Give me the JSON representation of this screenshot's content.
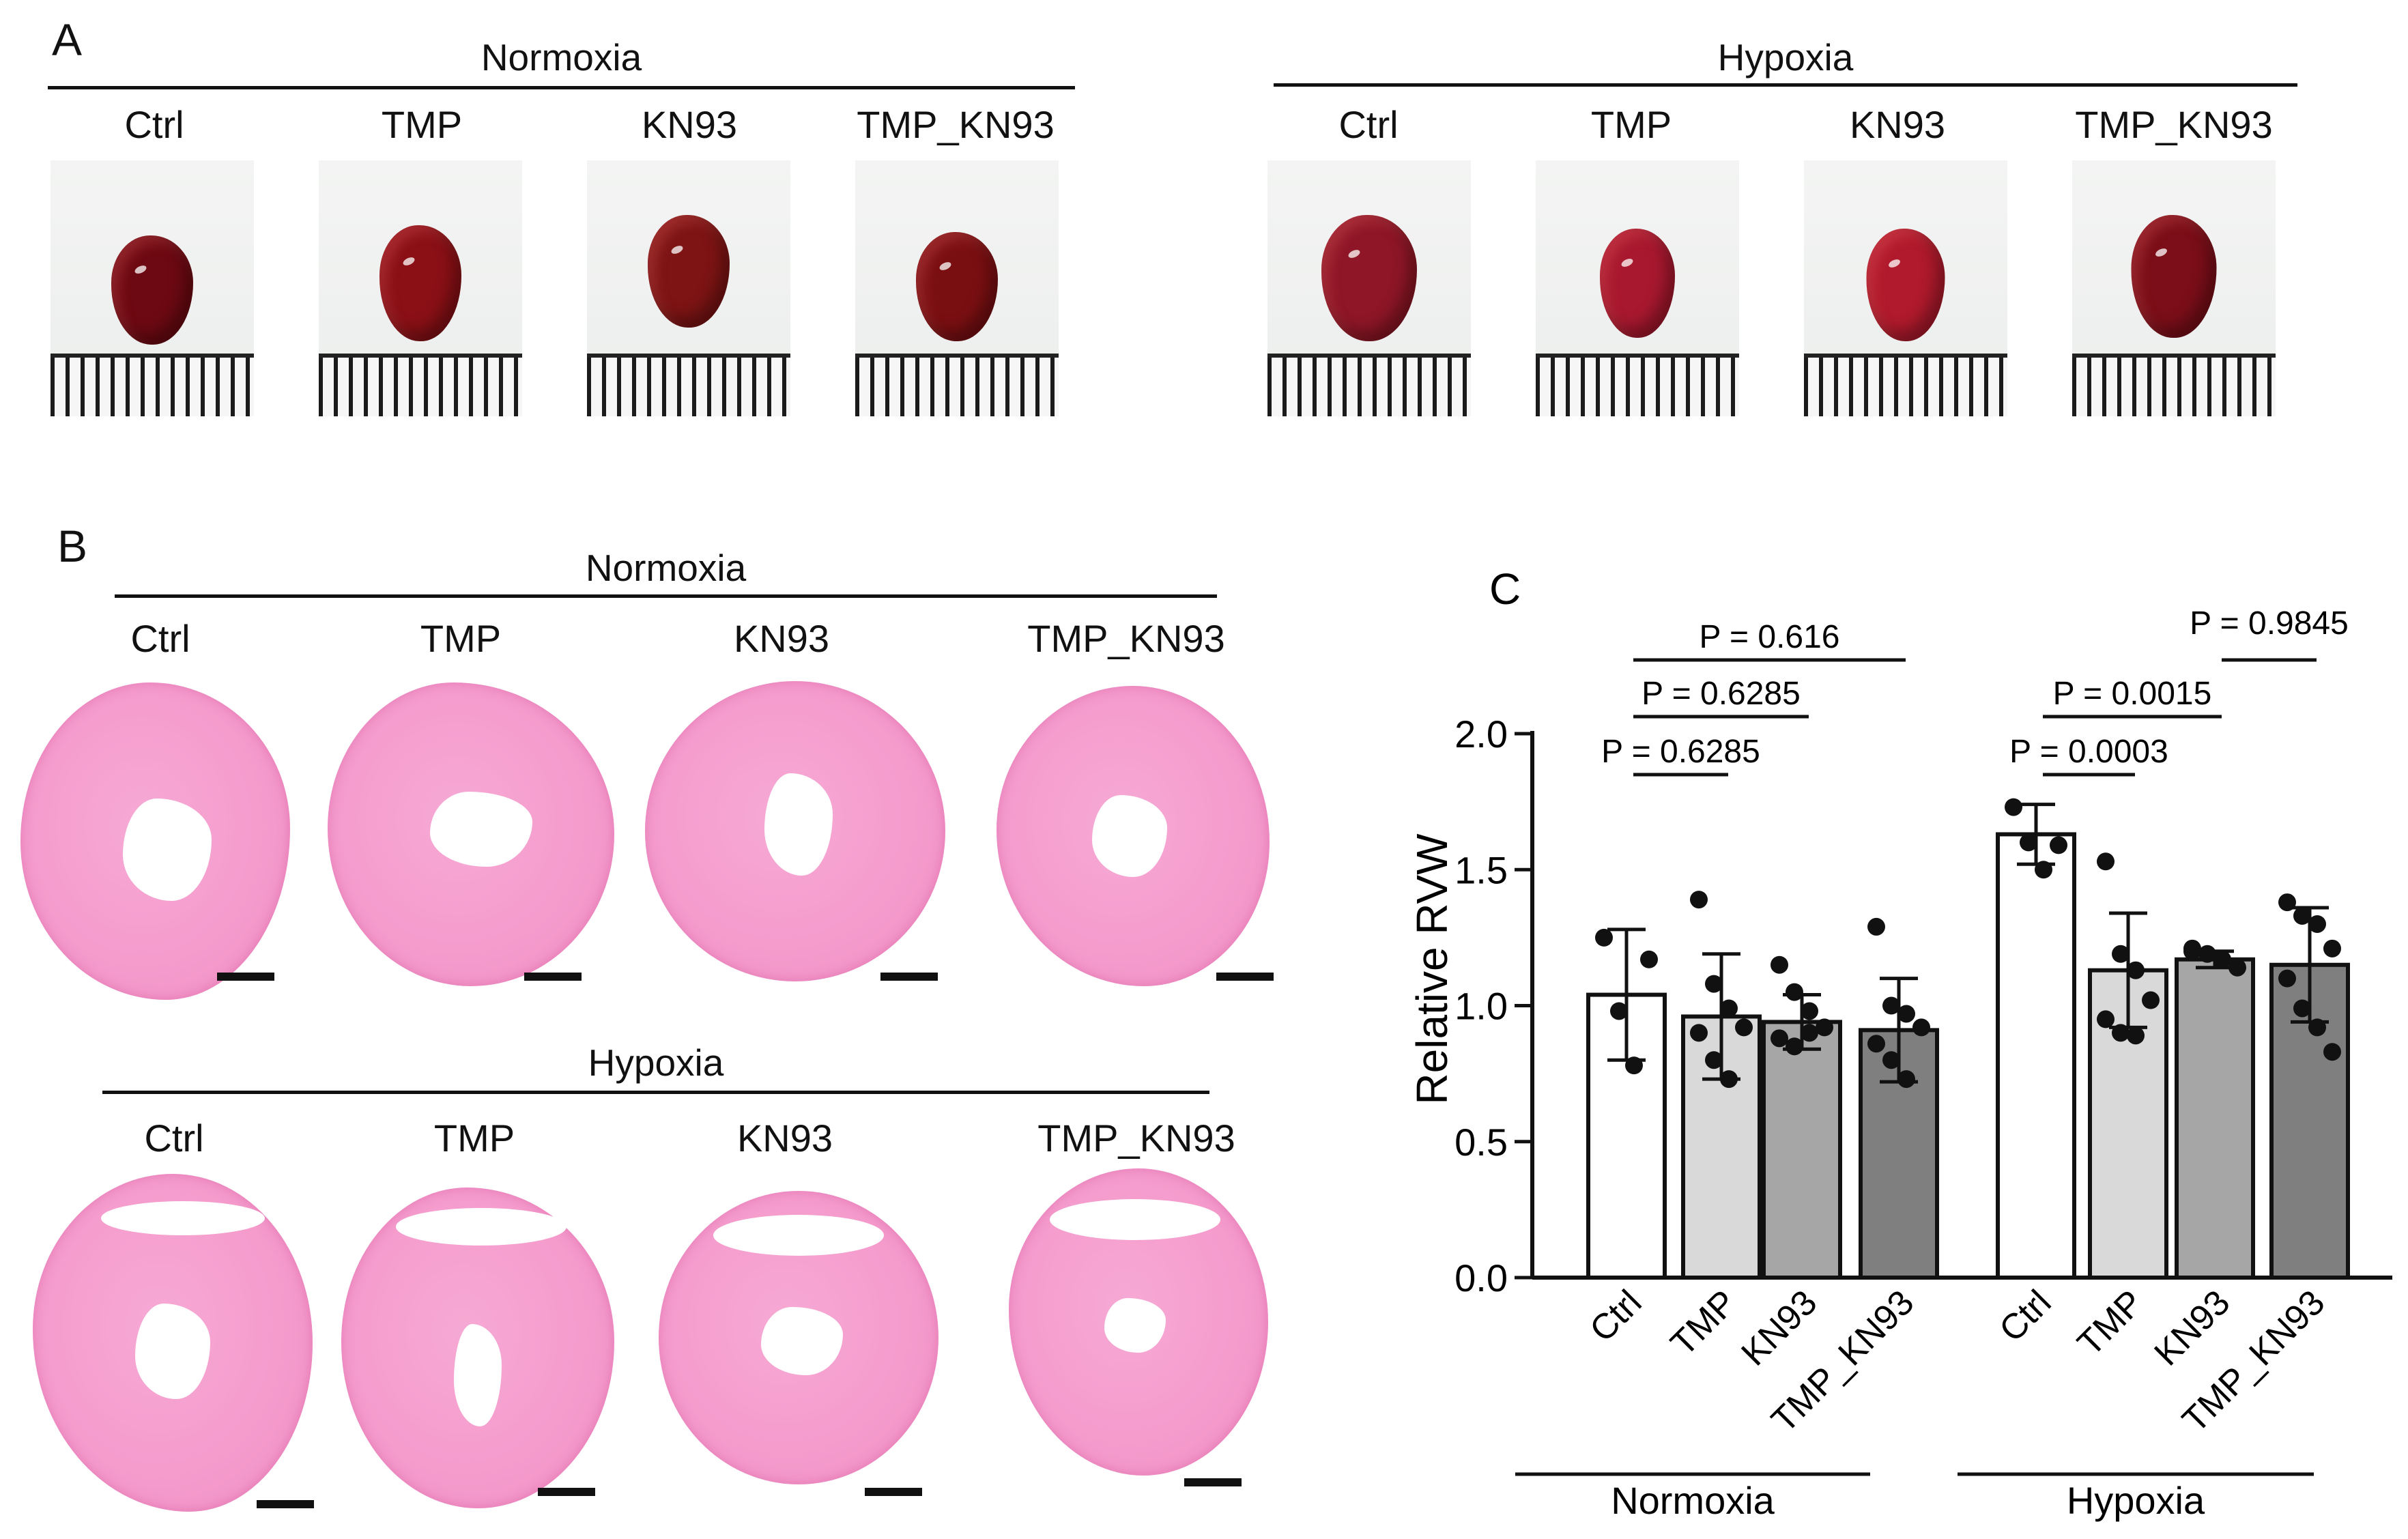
{
  "panel_a": {
    "letter": "A",
    "normoxia": {
      "title": "Normoxia",
      "groups": [
        "Ctrl",
        "TMP",
        "KN93",
        "TMP_KN93"
      ]
    },
    "hypoxia": {
      "title": "Hypoxia",
      "groups": [
        "Ctrl",
        "TMP",
        "KN93",
        "TMP_KN93"
      ]
    }
  },
  "panel_b": {
    "letter": "B",
    "normoxia": {
      "title": "Normoxia",
      "groups": [
        "Ctrl",
        "TMP",
        "KN93",
        "TMP_KN93"
      ]
    },
    "hypoxia": {
      "title": "Hypoxia",
      "groups": [
        "Ctrl",
        "TMP",
        "KN93",
        "TMP_KN93"
      ]
    }
  },
  "colors": {
    "heart_normoxia": "#7a0a14",
    "heart_hypoxia": "#9a1424",
    "stain": "#f59ccd"
  },
  "chart_data": {
    "type": "bar",
    "panel_letter": "C",
    "ylabel": "Relative RVW",
    "ylim": [
      0,
      2.0
    ],
    "yticks": [
      "0.0",
      "0.5",
      "1.0",
      "1.5",
      "2.0"
    ],
    "categories": [
      "Ctrl",
      "TMP",
      "KN93",
      "TMP_KN93",
      "Ctrl",
      "TMP",
      "KN93",
      "TMP_KN93"
    ],
    "groups": [
      {
        "name": "Normoxia",
        "indices": [
          0,
          1,
          2,
          3
        ]
      },
      {
        "name": "Hypoxia",
        "indices": [
          4,
          5,
          6,
          7
        ]
      }
    ],
    "values": [
      1.04,
      0.96,
      0.94,
      0.91,
      1.63,
      1.13,
      1.17,
      1.15
    ],
    "errors": [
      0.24,
      0.23,
      0.1,
      0.19,
      0.11,
      0.21,
      0.03,
      0.21
    ],
    "bar_colors": [
      "#ffffff",
      "#d9d9d9",
      "#a6a6a6",
      "#7f7f7f",
      "#ffffff",
      "#d9d9d9",
      "#a6a6a6",
      "#7f7f7f"
    ],
    "points": [
      [
        1.25,
        0.98,
        0.78,
        1.17
      ],
      [
        1.39,
        1.08,
        0.99,
        0.92,
        0.9,
        0.8,
        0.73
      ],
      [
        1.15,
        1.05,
        0.98,
        0.92,
        0.88,
        0.85,
        0.9
      ],
      [
        1.29,
        1.0,
        0.97,
        0.92,
        0.86,
        0.8,
        0.73
      ],
      [
        1.73,
        1.6,
        1.5,
        1.59
      ],
      [
        1.53,
        1.19,
        1.13,
        1.02,
        0.95,
        0.9,
        0.89
      ],
      [
        1.21,
        1.19,
        1.17,
        1.14,
        1.2
      ],
      [
        1.38,
        1.33,
        1.3,
        1.21,
        1.1,
        0.99,
        0.92,
        0.83
      ]
    ],
    "comparisons": [
      {
        "from": 0,
        "to": 1,
        "label": "P = 0.6285",
        "tier": 0
      },
      {
        "from": 0,
        "to": 2,
        "label": "P = 0.6285",
        "tier": 1
      },
      {
        "from": 0,
        "to": 3,
        "label": "P = 0.616",
        "tier": 2
      },
      {
        "from": 4,
        "to": 5,
        "label": "P = 0.0003",
        "tier": 0
      },
      {
        "from": 4,
        "to": 6,
        "label": "P = 0.0015",
        "tier": 1
      },
      {
        "from": 6,
        "to": 7,
        "label": "P = 0.9845",
        "tier": 2
      }
    ]
  }
}
